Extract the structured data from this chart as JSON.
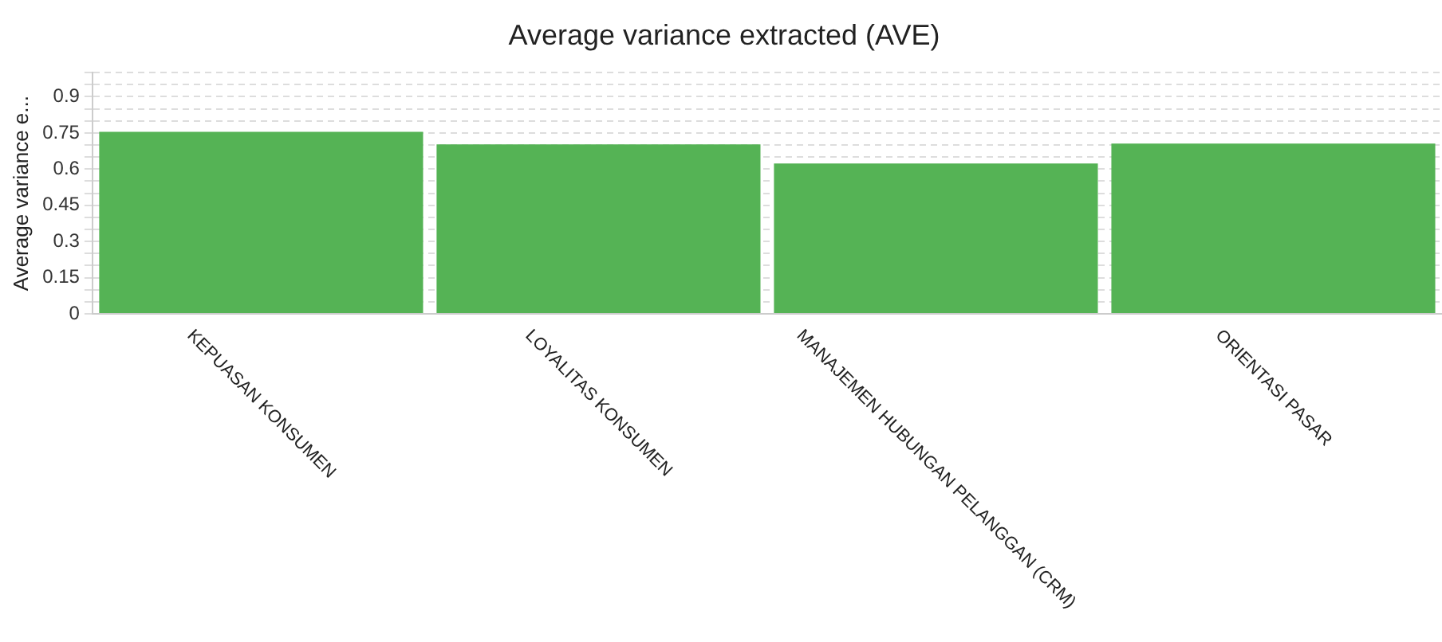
{
  "chart_data": {
    "type": "bar",
    "title": "Average variance extracted (AVE)",
    "ylabel": "Average variance e...",
    "categories": [
      "KEPUASAN KONSUMEN",
      "LOYALITAS KONSUMEN",
      "MANAJEMEN HUBUNGAN PELANGGAN (CRM)",
      "ORIENTASI PASAR"
    ],
    "values": [
      0.755,
      0.703,
      0.623,
      0.706
    ],
    "color": "#55b355",
    "ylim": [
      0,
      1
    ],
    "yticks": [
      0,
      {
        "value": 0.05,
        "label": null
      },
      {
        "value": 0.1,
        "label": null
      },
      0.15,
      {
        "value": 0.2,
        "label": null
      },
      {
        "value": 0.25,
        "label": null
      },
      0.3,
      {
        "value": 0.35,
        "label": null
      },
      {
        "value": 0.4,
        "label": null
      },
      0.45,
      {
        "value": 0.5,
        "label": null
      },
      {
        "value": 0.55,
        "label": null
      },
      0.6,
      {
        "value": 0.65,
        "label": null
      },
      {
        "value": 0.7,
        "label": null
      },
      0.75,
      {
        "value": 0.8,
        "label": null
      },
      {
        "value": 0.85,
        "label": null
      },
      0.9,
      {
        "value": 0.95,
        "label": null
      },
      {
        "value": 1,
        "label": null
      }
    ],
    "grid": "y",
    "legend": false
  }
}
